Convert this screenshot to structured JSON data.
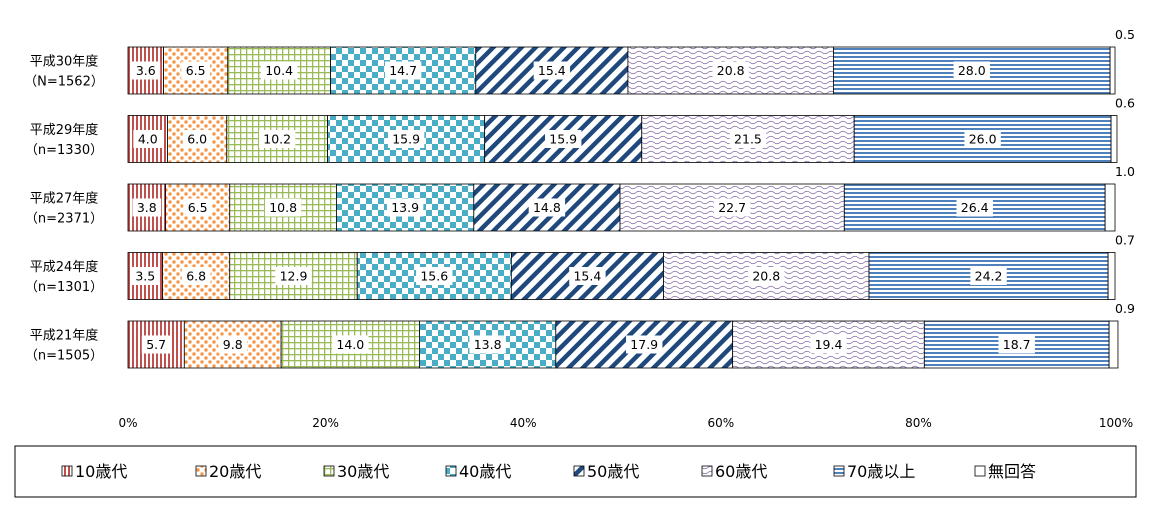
{
  "chart_data": {
    "type": "bar",
    "orientation": "horizontal",
    "stacked": true,
    "percent_stacked": true,
    "categories": [
      {
        "line1": "平成30年度",
        "line2": "（N=1562）"
      },
      {
        "line1": "平成29年度",
        "line2": "（n=1330）"
      },
      {
        "line1": "平成27年度",
        "line2": "（n=2371）"
      },
      {
        "line1": "平成24年度",
        "line2": "（n=1301）"
      },
      {
        "line1": "平成21年度",
        "line2": "（n=1505）"
      }
    ],
    "series": [
      {
        "name": "10歳代",
        "color": "#c0504d",
        "pattern": "vertical-lines",
        "values": [
          3.6,
          4.0,
          3.8,
          3.5,
          5.7
        ]
      },
      {
        "name": "20歳代",
        "color": "#f79646",
        "pattern": "dots",
        "values": [
          6.5,
          6.0,
          6.5,
          6.8,
          9.8
        ]
      },
      {
        "name": "30歳代",
        "color": "#9bbb59",
        "pattern": "grid",
        "values": [
          10.4,
          10.2,
          10.8,
          12.9,
          14.0
        ]
      },
      {
        "name": "40歳代",
        "color": "#4bacc6",
        "pattern": "checkerboard",
        "values": [
          14.7,
          15.9,
          13.9,
          15.6,
          13.8
        ]
      },
      {
        "name": "50歳代",
        "color": "#1f497d",
        "pattern": "diagonal-stripes",
        "values": [
          15.4,
          15.9,
          14.8,
          15.4,
          17.9
        ]
      },
      {
        "name": "60歳代",
        "color": "#8064a2",
        "pattern": "waves",
        "values": [
          20.8,
          21.5,
          22.7,
          20.8,
          19.4
        ]
      },
      {
        "name": "70歳以上",
        "color": "#4f81bd",
        "pattern": "horizontal-lines",
        "values": [
          28.0,
          26.0,
          26.4,
          24.2,
          18.7
        ]
      },
      {
        "name": "無回答",
        "color": "#ffffff",
        "pattern": "none",
        "values": [
          0.5,
          0.6,
          1.0,
          0.7,
          0.9
        ]
      }
    ],
    "value_labels": [
      [
        "3.6",
        "6.5",
        "10.4",
        "14.7",
        "15.4",
        "20.8",
        "28.0",
        "0.5"
      ],
      [
        "4.0",
        "6.0",
        "10.2",
        "15.9",
        "15.9",
        "21.5",
        "26.0",
        "0.6"
      ],
      [
        "3.8",
        "6.5",
        "10.8",
        "13.9",
        "14.8",
        "22.7",
        "26.4",
        "1.0"
      ],
      [
        "3.5",
        "6.8",
        "12.9",
        "15.6",
        "15.4",
        "20.8",
        "24.2",
        "0.7"
      ],
      [
        "5.7",
        "9.8",
        "14.0",
        "13.8",
        "17.9",
        "19.4",
        "18.7",
        "0.9"
      ]
    ],
    "x_ticks": [
      "0%",
      "20%",
      "40%",
      "60%",
      "80%",
      "100%"
    ],
    "xlim": [
      0,
      100
    ],
    "grid": false,
    "legend_position": "bottom",
    "title": "",
    "xlabel": "",
    "ylabel": ""
  }
}
